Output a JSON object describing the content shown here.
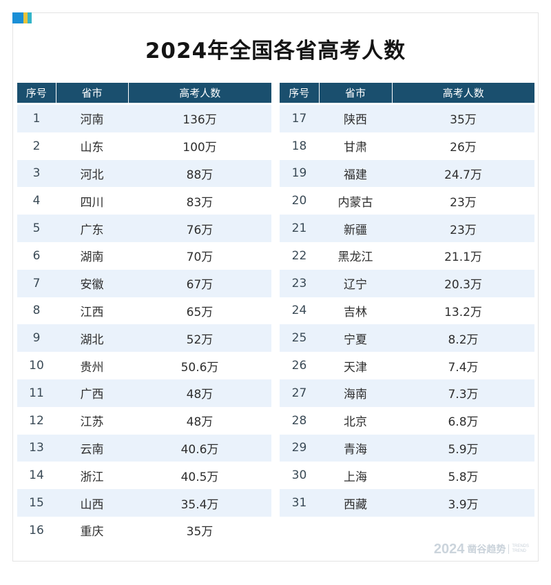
{
  "title": "2024年全国各省高考人数",
  "headers": {
    "rank": "序号",
    "province": "省市",
    "count": "高考人数"
  },
  "left_rows": [
    {
      "rank": "1",
      "province": "河南",
      "count": "136万"
    },
    {
      "rank": "2",
      "province": "山东",
      "count": "100万"
    },
    {
      "rank": "3",
      "province": "河北",
      "count": "88万"
    },
    {
      "rank": "4",
      "province": "四川",
      "count": "83万"
    },
    {
      "rank": "5",
      "province": "广东",
      "count": "76万"
    },
    {
      "rank": "6",
      "province": "湖南",
      "count": "70万"
    },
    {
      "rank": "7",
      "province": "安徽",
      "count": "67万"
    },
    {
      "rank": "8",
      "province": "江西",
      "count": "65万"
    },
    {
      "rank": "9",
      "province": "湖北",
      "count": "52万"
    },
    {
      "rank": "10",
      "province": "贵州",
      "count": "50.6万"
    },
    {
      "rank": "11",
      "province": "广西",
      "count": "48万"
    },
    {
      "rank": "12",
      "province": "江苏",
      "count": "48万"
    },
    {
      "rank": "13",
      "province": "云南",
      "count": "40.6万"
    },
    {
      "rank": "14",
      "province": "浙江",
      "count": "40.5万"
    },
    {
      "rank": "15",
      "province": "山西",
      "count": "35.4万"
    },
    {
      "rank": "16",
      "province": "重庆",
      "count": "35万"
    }
  ],
  "right_rows": [
    {
      "rank": "17",
      "province": "陕西",
      "count": "35万"
    },
    {
      "rank": "18",
      "province": "甘肃",
      "count": "26万"
    },
    {
      "rank": "19",
      "province": "福建",
      "count": "24.7万"
    },
    {
      "rank": "20",
      "province": "内蒙古",
      "count": "23万"
    },
    {
      "rank": "21",
      "province": "新疆",
      "count": "23万"
    },
    {
      "rank": "22",
      "province": "黑龙江",
      "count": "21.1万"
    },
    {
      "rank": "23",
      "province": "辽宁",
      "count": "20.3万"
    },
    {
      "rank": "24",
      "province": "吉林",
      "count": "13.2万"
    },
    {
      "rank": "25",
      "province": "宁夏",
      "count": "8.2万"
    },
    {
      "rank": "26",
      "province": "天津",
      "count": "7.4万"
    },
    {
      "rank": "27",
      "province": "海南",
      "count": "7.3万"
    },
    {
      "rank": "28",
      "province": "北京",
      "count": "6.8万"
    },
    {
      "rank": "29",
      "province": "青海",
      "count": "5.9万"
    },
    {
      "rank": "30",
      "province": "上海",
      "count": "5.8万"
    },
    {
      "rank": "31",
      "province": "西藏",
      "count": "3.9万"
    }
  ],
  "watermark": {
    "year": "2024",
    "brand": "凿谷趋势",
    "sub_line1": "TRENDS",
    "sub_line2": "TREND"
  },
  "colors": {
    "header_bg": "#1a4f6e",
    "stripe_bg": "#eaf2fb",
    "accent_blue": "#1a8fd6",
    "accent_yellow": "#e8c33a",
    "accent_teal": "#35b5c9"
  }
}
